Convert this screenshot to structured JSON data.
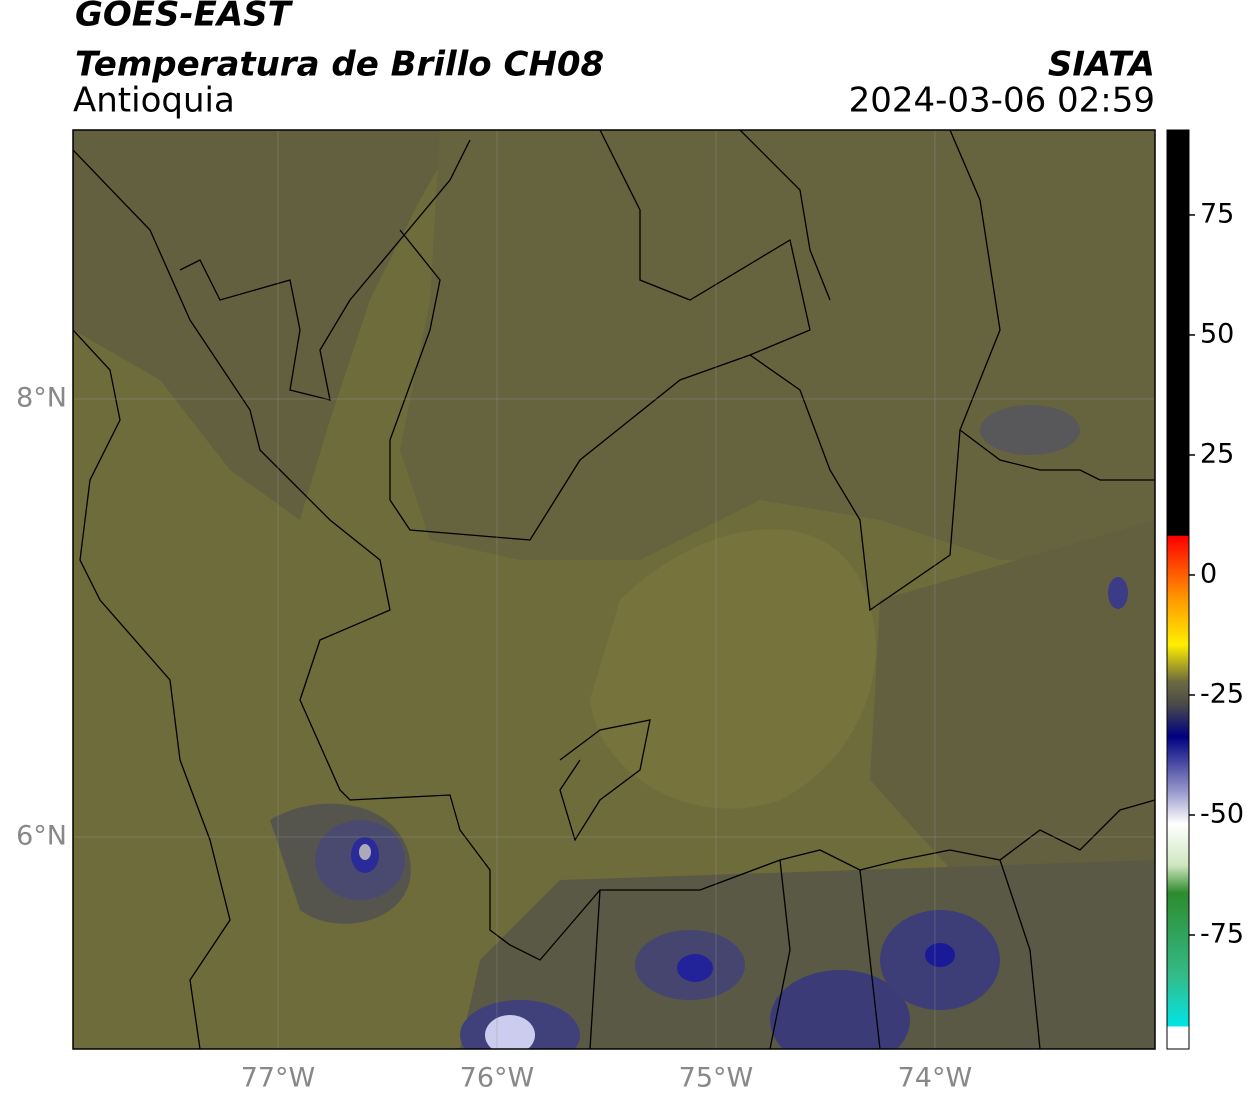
{
  "header": {
    "title": "GOES-EAST",
    "subtitle": "Temperatura de Brillo CH08",
    "region": "Antioquia",
    "source": "SIATA",
    "timestamp": "2024-03-06 02:59"
  },
  "map": {
    "xlim": [
      -77.936,
      -72.995
    ],
    "ylim": [
      5.032,
      9.228
    ],
    "xticks": [
      {
        "value": -77,
        "label": "77°W"
      },
      {
        "value": -76,
        "label": "76°W"
      },
      {
        "value": -75,
        "label": "75°W"
      },
      {
        "value": -74,
        "label": "74°W"
      }
    ],
    "yticks": [
      {
        "value": 8,
        "label": "8°N"
      },
      {
        "value": 6,
        "label": "6°N"
      }
    ]
  },
  "colorbar": {
    "lim": [
      -98.75,
      92.7
    ],
    "ticks": [
      75,
      50,
      25,
      0,
      -25,
      -50,
      -75
    ]
  }
}
